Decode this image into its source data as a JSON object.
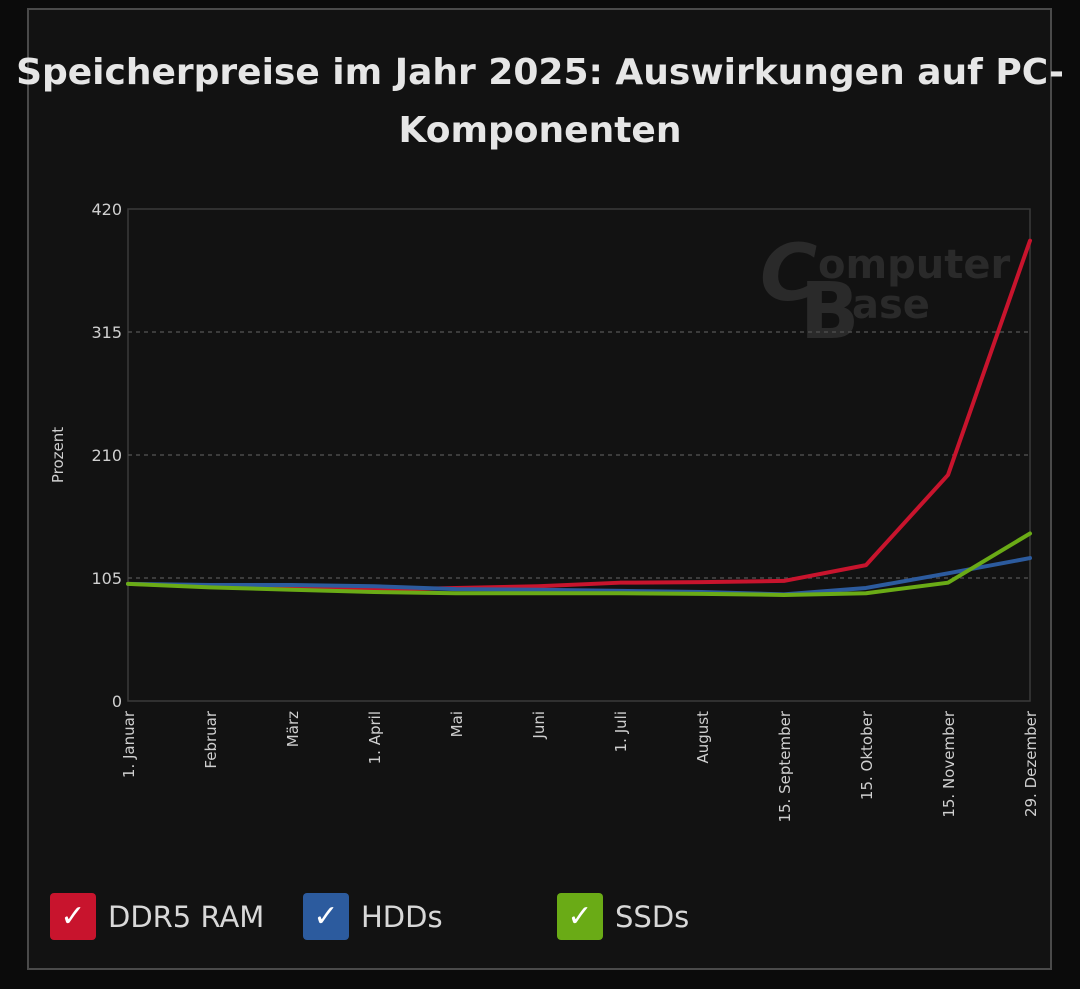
{
  "chart_data": {
    "type": "line",
    "title": "Speicherpreise im Jahr 2025: Auswirkungen auf PC-Komponenten",
    "ylabel": "Prozent",
    "xlabel": "",
    "ylim": [
      0,
      420
    ],
    "yticks": [
      "0",
      "105",
      "210",
      "315",
      "420"
    ],
    "grid": true,
    "legend_position": "bottom",
    "watermark": "ComputerBase",
    "categories": [
      "1. Januar",
      "Februar",
      "März",
      "1. April",
      "Mai",
      "Juni",
      "1. Juli",
      "August",
      "15. September",
      "15. Oktober",
      "15. November",
      "29. Dezember"
    ],
    "series": [
      {
        "name": "DDR5 RAM",
        "color": "#c8142d",
        "values": [
          100,
          98,
          96,
          95,
          96.5,
          98,
          101,
          101.5,
          102.5,
          116,
          193,
          393
        ]
      },
      {
        "name": "HDDs",
        "color": "#2c5b9e",
        "values": [
          100,
          99,
          99,
          98,
          95.5,
          95,
          94,
          93,
          91,
          96.5,
          109,
          122
        ]
      },
      {
        "name": "SSDs",
        "color": "#6aab16",
        "values": [
          100,
          97,
          95,
          93,
          92,
          92,
          92,
          91.5,
          90.5,
          92,
          101,
          143
        ]
      }
    ]
  },
  "legend": {
    "check_icon": "checkmark-icon",
    "check_glyph": "✓"
  }
}
